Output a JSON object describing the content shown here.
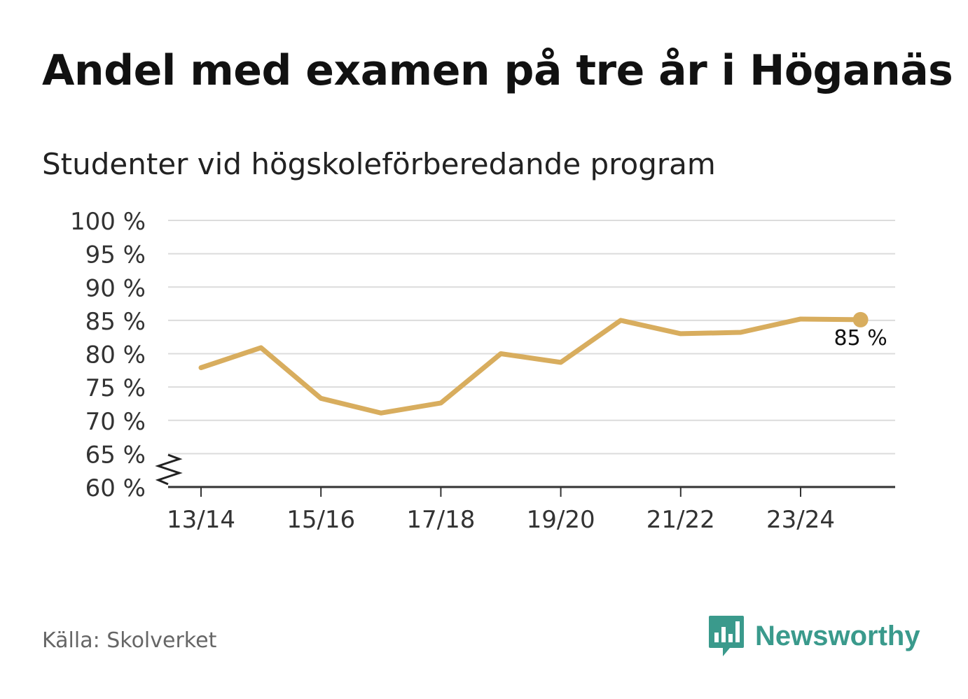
{
  "title": "Andel med examen på tre år i Höganäs",
  "subtitle": "Studenter vid högskoleförberedande program",
  "source": "Källa: Skolverket",
  "brand": "Newsworthy",
  "colors": {
    "line": "#d8ad5e",
    "grid": "#dcdcdc",
    "axis": "#333333",
    "brand": "#3a9a8c"
  },
  "chart_data": {
    "type": "line",
    "title": "Andel med examen på tre år i Höganäs",
    "subtitle": "Studenter vid högskoleförberedande program",
    "xlabel": "",
    "ylabel": "",
    "ylim": [
      60,
      100
    ],
    "yticks": [
      60,
      65,
      70,
      75,
      80,
      85,
      90,
      95,
      100
    ],
    "ytick_suffix": " %",
    "axis_break": true,
    "grid": true,
    "x": [
      "13/14",
      "14/15",
      "15/16",
      "16/17",
      "17/18",
      "18/19",
      "19/20",
      "20/21",
      "21/22",
      "22/23",
      "23/24",
      "24/25"
    ],
    "xtick_labels": [
      "13/14",
      "15/16",
      "17/18",
      "19/20",
      "21/22",
      "23/24"
    ],
    "series": [
      {
        "name": "Andel med examen på tre år",
        "values": [
          77.9,
          80.9,
          73.3,
          71.1,
          72.6,
          80.0,
          78.7,
          85.0,
          83.0,
          83.2,
          85.2,
          85.1
        ]
      }
    ],
    "last_value_label": "85 %"
  }
}
